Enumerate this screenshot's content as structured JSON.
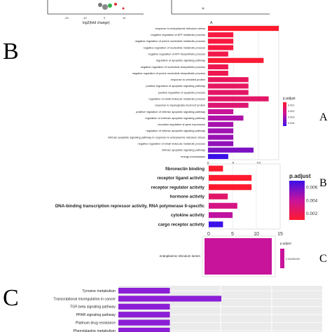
{
  "panel_letters": {
    "big_b": "B",
    "big_c": "C",
    "side_a": "A",
    "side_b": "B",
    "side_c": "C"
  },
  "top_strip": {
    "xlabel": "log2(fold change)",
    "right_xlabel": "A",
    "left_ticks": [
      "-20",
      "-10",
      "0",
      "10"
    ]
  },
  "chart_data": [
    {
      "id": "bp",
      "type": "bar",
      "title": "",
      "xlabel": "",
      "ylabel": "",
      "xlim": [
        0,
        14
      ],
      "xticks": [
        0,
        5,
        10
      ],
      "grid": true,
      "legend": {
        "title": "p.adjust",
        "position": "right",
        "ticks": [
          "0.001",
          "0.002",
          "0.003",
          "0.004"
        ]
      },
      "colors": {
        "low": "#ff1a2e",
        "high": "#3b10e8"
      },
      "categories": [
        "response to endoplasmic reticulum stress",
        "negative regulation of ATP metabolic process",
        "negative regulation of purine nucleotide metabolic process",
        "negative regulation of nucleotide metabolic process",
        "negative regulation of ATP biosynthetic process",
        "regulation of apoptotic signaling pathway",
        "negative regulation of nucleotide biosynthetic process",
        "negative regulation of purine nucleotide biosynthetic process",
        "response to unfolded protein",
        "positive regulation of apoptotic signaling pathway",
        "positive regulation of apoptotic process",
        "regulation of small molecule metabolic process",
        "response to topologically incorrect protein",
        "positive regulation of intrinsic apoptotic signaling pathway",
        "regulation of extrinsic apoptotic signaling pathway",
        "circadian regulation of gene expression",
        "regulation of intrinsic apoptotic signaling pathway",
        "intrinsic apoptotic signaling pathway in response to endoplasmic reticulum stress",
        "negative regulation of small molecule metabolic process",
        "intrinsic apoptotic signaling pathway",
        "energy homeostasis"
      ],
      "values": [
        14,
        5,
        5,
        5,
        4,
        11,
        4,
        4,
        8,
        8,
        8,
        12,
        8,
        5,
        7,
        5,
        5,
        5,
        5,
        9,
        4
      ],
      "p_adjust": [
        0.0003,
        0.0006,
        0.0006,
        0.0006,
        0.0008,
        0.0004,
        0.0009,
        0.0009,
        0.0011,
        0.0012,
        0.0013,
        0.0013,
        0.0015,
        0.0022,
        0.0026,
        0.0027,
        0.0028,
        0.0029,
        0.003,
        0.0033,
        0.0042
      ]
    },
    {
      "id": "mf",
      "type": "bar",
      "title": "",
      "xlabel": "",
      "ylabel": "",
      "xlim": [
        0,
        15
      ],
      "xticks": [
        0,
        5,
        10,
        15
      ],
      "grid": true,
      "legend": {
        "title": "p.adjust",
        "position": "right",
        "ticks": [
          "0.006",
          "0.004",
          "0.002"
        ]
      },
      "colors": {
        "low": "#ff1a2e",
        "high": "#3b10e8"
      },
      "categories": [
        "fibronectin binding",
        "receptor ligand activity",
        "receptor regulator activity",
        "hormone activity",
        "DNA-binding transcription repressor activity, RNA polymerase II-specific",
        "cytokine activity",
        "cargo receptor activity"
      ],
      "values": [
        3,
        9,
        9,
        4,
        6,
        5,
        3
      ],
      "p_adjust": [
        0.0002,
        0.0002,
        0.0002,
        0.002,
        0.0028,
        0.0037,
        0.0068
      ]
    },
    {
      "id": "cc",
      "type": "bar",
      "title": "",
      "xlabel": "",
      "ylabel": "",
      "categories": [
        "endoplasmic reticulum lumen"
      ],
      "values": [
        1
      ],
      "legend": {
        "title": "p.adjust",
        "position": "right",
        "ticks": [
          "0.04281159"
        ]
      },
      "colors": {
        "bar": "#c8139b"
      }
    },
    {
      "id": "kegg",
      "type": "bar",
      "title": "",
      "xlabel": "",
      "ylabel": "",
      "grid": true,
      "colors": {
        "bar": "#8b1ed6"
      },
      "categories": [
        "Tyrosine metabolism",
        "Transcriptional misregulation in cancer",
        "TGF-beta signaling pathway",
        "PPAR signaling pathway",
        "Platinum drug resistance",
        "Phenylalanine metabolism"
      ],
      "values": [
        2,
        4,
        2,
        2,
        2,
        2
      ]
    }
  ]
}
